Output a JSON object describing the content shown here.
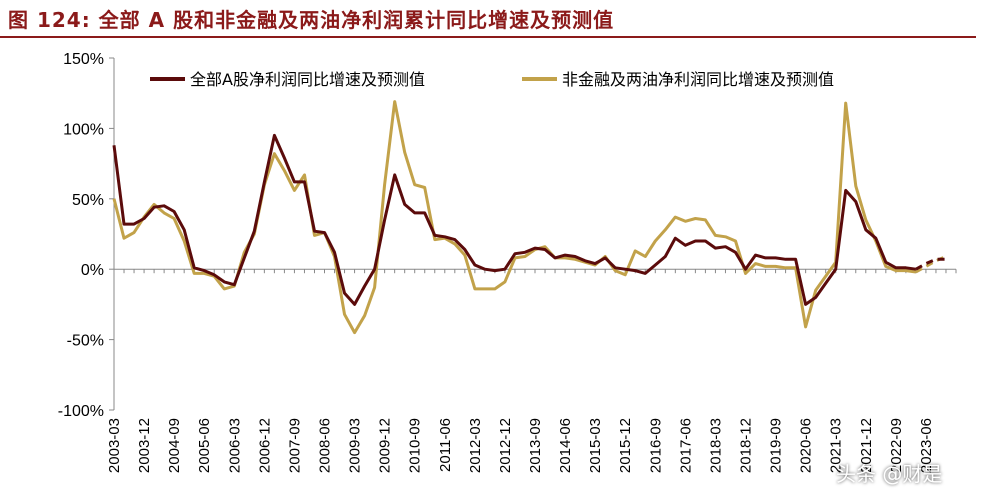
{
  "title": "图 124:  全部 A 股和非金融及两油净利润累计同比增速及预测值",
  "watermark": "头条 @财是",
  "colors": {
    "title": "#8b1a1a",
    "series1": "#5b0b0b",
    "series2": "#c2a24a"
  },
  "chart_data": {
    "type": "line",
    "ylim": [
      -100,
      150
    ],
    "yticks": [
      150,
      100,
      50,
      0,
      -50,
      -100
    ],
    "ytick_labels": [
      "150%",
      "100%",
      "50%",
      "0%",
      "-50%",
      "-100%"
    ],
    "x_tick_labels": [
      "2003-03",
      "2003-12",
      "2004-09",
      "2005-06",
      "2006-03",
      "2006-12",
      "2007-09",
      "2008-06",
      "2009-03",
      "2009-12",
      "2010-09",
      "2011-06",
      "2012-03",
      "2012-12",
      "2013-09",
      "2014-06",
      "2015-03",
      "2015-12",
      "2016-09",
      "2017-06",
      "2018-03",
      "2018-12",
      "2019-09",
      "2020-06",
      "2021-03",
      "2021-12",
      "2022-09",
      "2023-06"
    ],
    "legend_position": "top",
    "grid": false,
    "series": [
      {
        "name": "全部A股净利润同比增速及预测值",
        "values": [
          88,
          32,
          32,
          36,
          44,
          45,
          41,
          28,
          1,
          -1,
          -4,
          -9,
          -11,
          8,
          27,
          62,
          95,
          79,
          62,
          62,
          27,
          26,
          12,
          -17,
          -25,
          -12,
          0,
          35,
          67,
          46,
          40,
          40,
          24,
          23,
          21,
          14,
          3,
          0,
          -1,
          0,
          11,
          12,
          15,
          14,
          8,
          10,
          9,
          6,
          4,
          8,
          1,
          0,
          -1,
          -3,
          3,
          9,
          22,
          17,
          20,
          20,
          15,
          16,
          12,
          0,
          10,
          8,
          8,
          7,
          7,
          -25,
          -20,
          -10,
          0,
          56,
          48,
          28,
          22,
          5,
          1,
          1,
          0
        ],
        "forecast": [
          0,
          4,
          7,
          7
        ]
      },
      {
        "name": "非金融及两油净利润同比增速及预测值",
        "values": [
          50,
          22,
          26,
          37,
          46,
          40,
          36,
          20,
          -3,
          -3,
          -5,
          -14,
          -12,
          12,
          25,
          60,
          82,
          70,
          56,
          67,
          24,
          26,
          9,
          -32,
          -45,
          -33,
          -13,
          60,
          119,
          83,
          60,
          58,
          21,
          22,
          18,
          10,
          -14,
          -14,
          -14,
          -9,
          8,
          9,
          14,
          16,
          8,
          8,
          7,
          5,
          3,
          9,
          -1,
          -4,
          13,
          9,
          20,
          28,
          37,
          34,
          36,
          35,
          24,
          23,
          20,
          -3,
          4,
          2,
          2,
          1,
          1,
          -41,
          -15,
          -5,
          5,
          118,
          59,
          35,
          20,
          2,
          -1,
          -1,
          -2
        ],
        "forecast": [
          -2,
          2,
          6,
          9
        ]
      }
    ]
  }
}
